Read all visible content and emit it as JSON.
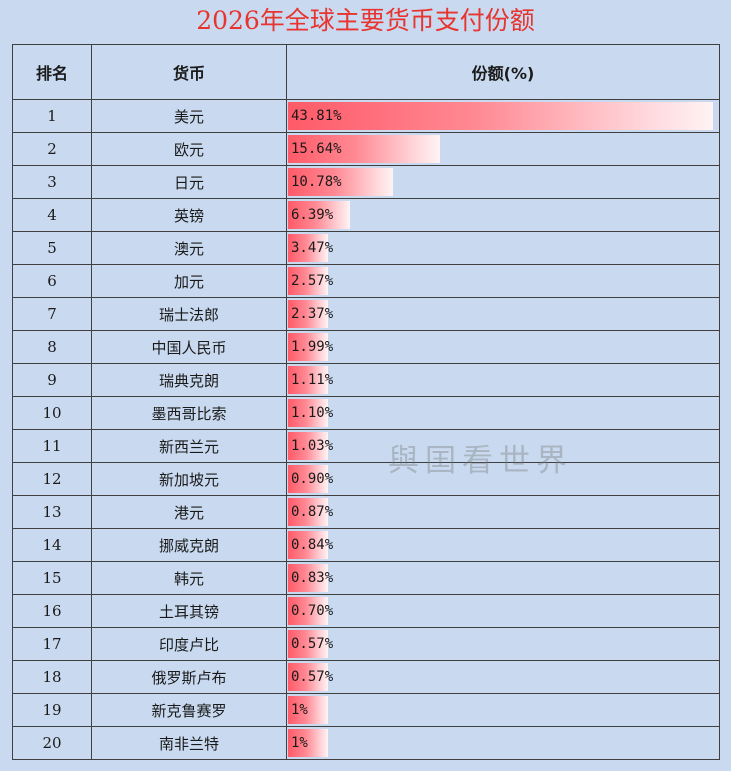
{
  "title": "2026年全球主要货币支付份额",
  "watermark": "與囯看世界",
  "headers": {
    "rank": "排名",
    "currency": "货币",
    "share": "份额(%)"
  },
  "bar_max": 44.5,
  "chart_data": {
    "type": "table",
    "title": "2026年全球主要货币支付份额",
    "columns": [
      "排名",
      "货币",
      "份额(%)"
    ],
    "rows": [
      {
        "rank": "1",
        "currency": "美元",
        "label": "43.81%",
        "value": 43.81
      },
      {
        "rank": "2",
        "currency": "欧元",
        "label": "15.64%",
        "value": 15.64
      },
      {
        "rank": "3",
        "currency": "日元",
        "label": "10.78%",
        "value": 10.78
      },
      {
        "rank": "4",
        "currency": "英镑",
        "label": "6.39%",
        "value": 6.39
      },
      {
        "rank": "5",
        "currency": "澳元",
        "label": "3.47%",
        "value": 3.47
      },
      {
        "rank": "6",
        "currency": "加元",
        "label": "2.57%",
        "value": 2.57
      },
      {
        "rank": "7",
        "currency": "瑞士法郎",
        "label": "2.37%",
        "value": 2.37
      },
      {
        "rank": "8",
        "currency": "中国人民币",
        "label": "1.99%",
        "value": 1.99
      },
      {
        "rank": "9",
        "currency": "瑞典克朗",
        "label": "1.11%",
        "value": 1.11
      },
      {
        "rank": "10",
        "currency": "墨西哥比索",
        "label": "1.10%",
        "value": 1.1
      },
      {
        "rank": "11",
        "currency": "新西兰元",
        "label": "1.03%",
        "value": 1.03
      },
      {
        "rank": "12",
        "currency": "新加坡元",
        "label": "0.90%",
        "value": 0.9
      },
      {
        "rank": "13",
        "currency": "港元",
        "label": "0.87%",
        "value": 0.87
      },
      {
        "rank": "14",
        "currency": "挪威克朗",
        "label": "0.84%",
        "value": 0.84
      },
      {
        "rank": "15",
        "currency": "韩元",
        "label": "0.83%",
        "value": 0.83
      },
      {
        "rank": "16",
        "currency": "土耳其镑",
        "label": "0.70%",
        "value": 0.7
      },
      {
        "rank": "17",
        "currency": "印度卢比",
        "label": "0.57%",
        "value": 0.57
      },
      {
        "rank": "18",
        "currency": "俄罗斯卢布",
        "label": "0.57%",
        "value": 0.57
      },
      {
        "rank": "19",
        "currency": "新克鲁赛罗",
        "label": "1%",
        "value": 0.5
      },
      {
        "rank": "20",
        "currency": "南非兰特",
        "label": "1%",
        "value": 0.5
      }
    ]
  }
}
